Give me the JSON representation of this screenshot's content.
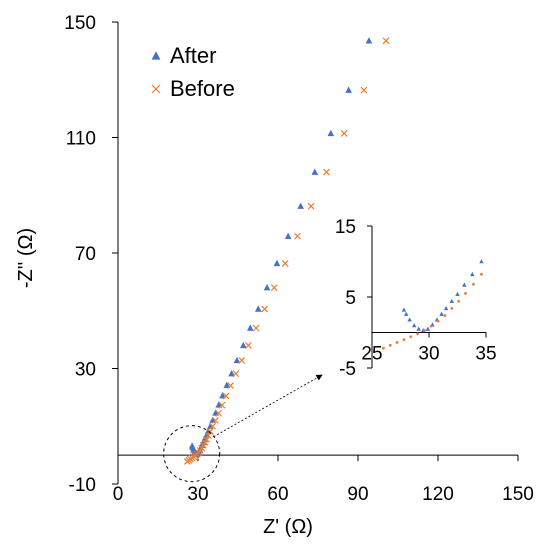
{
  "chart_data": {
    "type": "scatter",
    "xlabel": "Z' (Ω)",
    "ylabel": "-Z'' (Ω)",
    "xlim": [
      0,
      150
    ],
    "ylim": [
      -10,
      150
    ],
    "x_ticks": [
      "0",
      "30",
      "60",
      "90",
      "120",
      "150"
    ],
    "y_ticks": [
      "150",
      "110",
      "70",
      "30",
      "-10"
    ],
    "x_tick_values": [
      0,
      30,
      60,
      90,
      120,
      150
    ],
    "y_tick_values": [
      150,
      110,
      70,
      30,
      -10
    ],
    "grid": false,
    "legend_position": "top-left",
    "series": [
      {
        "name": "After",
        "marker": "triangle",
        "color": "#4472C4",
        "points": [
          [
            27.8,
            3.2
          ],
          [
            28.0,
            2.6
          ],
          [
            28.3,
            1.8
          ],
          [
            28.7,
            1.0
          ],
          [
            29.1,
            0.5
          ],
          [
            29.5,
            0.3
          ],
          [
            29.9,
            0.5
          ],
          [
            30.3,
            1.1
          ],
          [
            30.7,
            1.8
          ],
          [
            31.1,
            2.6
          ],
          [
            31.5,
            3.4
          ],
          [
            32.0,
            4.4
          ],
          [
            32.5,
            5.4
          ],
          [
            33.1,
            6.7
          ],
          [
            33.8,
            8.2
          ],
          [
            34.6,
            10.0
          ],
          [
            35.5,
            12.1
          ],
          [
            36.6,
            14.6
          ],
          [
            37.8,
            17.4
          ],
          [
            39.2,
            20.6
          ],
          [
            40.8,
            24.2
          ],
          [
            42.6,
            28.2
          ],
          [
            44.6,
            32.8
          ],
          [
            47.0,
            38.0
          ],
          [
            49.6,
            44.0
          ],
          [
            52.6,
            50.6
          ],
          [
            55.9,
            58.0
          ],
          [
            59.6,
            66.4
          ],
          [
            63.8,
            75.8
          ],
          [
            68.5,
            86.2
          ],
          [
            73.8,
            98.0
          ],
          [
            79.8,
            111.4
          ],
          [
            86.5,
            126.4
          ],
          [
            94.1,
            143.5
          ]
        ]
      },
      {
        "name": "Before",
        "marker": "cross",
        "color": "#ED7D31",
        "points": [
          [
            26.0,
            -2.2
          ],
          [
            26.6,
            -1.8
          ],
          [
            27.2,
            -1.4
          ],
          [
            27.8,
            -1.0
          ],
          [
            28.4,
            -0.6
          ],
          [
            29.0,
            -0.2
          ],
          [
            29.6,
            0.3
          ],
          [
            30.2,
            0.9
          ],
          [
            30.8,
            1.6
          ],
          [
            31.4,
            2.4
          ],
          [
            32.0,
            3.4
          ],
          [
            32.6,
            4.4
          ],
          [
            33.2,
            5.5
          ],
          [
            33.9,
            6.8
          ],
          [
            34.6,
            8.2
          ],
          [
            35.5,
            10.0
          ],
          [
            36.5,
            12.0
          ],
          [
            37.7,
            14.5
          ],
          [
            39.0,
            17.3
          ],
          [
            40.5,
            20.5
          ],
          [
            42.2,
            24.1
          ],
          [
            44.2,
            28.2
          ],
          [
            46.4,
            32.8
          ],
          [
            48.9,
            38.0
          ],
          [
            51.8,
            44.0
          ],
          [
            55.0,
            50.6
          ],
          [
            58.6,
            58.0
          ],
          [
            62.7,
            66.4
          ],
          [
            67.3,
            75.8
          ],
          [
            72.4,
            86.2
          ],
          [
            78.2,
            98.0
          ],
          [
            84.8,
            111.4
          ],
          [
            92.2,
            126.4
          ],
          [
            100.5,
            143.5
          ]
        ]
      }
    ],
    "inset": {
      "xlim": [
        25,
        35
      ],
      "ylim": [
        -5,
        15
      ],
      "x_ticks": [
        "25",
        "30",
        "35"
      ],
      "y_ticks": [
        "15",
        "5",
        "-5"
      ],
      "x_tick_values": [
        25,
        30,
        35
      ],
      "y_tick_values": [
        15,
        5,
        -5
      ],
      "zoom_center": [
        29.5,
        0.5
      ]
    }
  }
}
